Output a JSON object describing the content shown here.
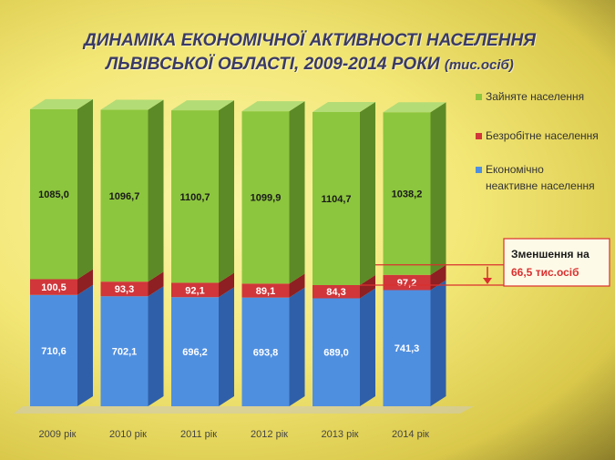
{
  "title": {
    "line1": "ДИНАМІКА ЕКОНОМІЧНОЇ АКТИВНОСТІ НАСЕЛЕННЯ",
    "line2": "ЛЬВІВСЬКОЇ ОБЛАСТІ, 2009-2014 РОКИ",
    "unit": "(тис.осіб)"
  },
  "colors": {
    "employed": "#8cc63e",
    "unemployed": "#d0363a",
    "inactive": "#4f8fe0",
    "annotation": "#d9302f"
  },
  "chart_data": {
    "type": "bar",
    "stacked": true,
    "categories": [
      "2009 рік",
      "2010 рік",
      "2011 рік",
      "2012 рік",
      "2013 рік",
      "2014 рік"
    ],
    "series": [
      {
        "name": "Економічно неактивне населення",
        "values": [
          710.6,
          702.1,
          696.2,
          693.8,
          689.0,
          741.3
        ],
        "labels": [
          "710,6",
          "702,1",
          "696,2",
          "693,8",
          "689,0",
          "741,3"
        ]
      },
      {
        "name": "Безробітне населення",
        "values": [
          100.5,
          93.3,
          92.1,
          89.1,
          84.3,
          97.2
        ],
        "labels": [
          "100,5",
          "93,3",
          "92,1",
          "89,1",
          "84,3",
          "97,2"
        ]
      },
      {
        "name": "Зайняте населення",
        "values": [
          1085.0,
          1096.7,
          1100.7,
          1099.9,
          1104.7,
          1038.2
        ],
        "labels": [
          "1085,0",
          "1096,7",
          "1100,7",
          "1099,9",
          "1104,7",
          "1038,2"
        ]
      }
    ],
    "legend": [
      {
        "name": "Зайняте населення",
        "lines": [
          "Зайняте населення"
        ]
      },
      {
        "name": "Безробітне населення",
        "lines": [
          "Безробітне населення"
        ]
      },
      {
        "name": "Економічно неактивне населення",
        "lines": [
          "Економічно",
          "неактивне населення"
        ]
      }
    ],
    "legend_position": "right",
    "annotation": {
      "line1": "Зменшення на",
      "line2": "66,5 тис.осіб"
    }
  }
}
